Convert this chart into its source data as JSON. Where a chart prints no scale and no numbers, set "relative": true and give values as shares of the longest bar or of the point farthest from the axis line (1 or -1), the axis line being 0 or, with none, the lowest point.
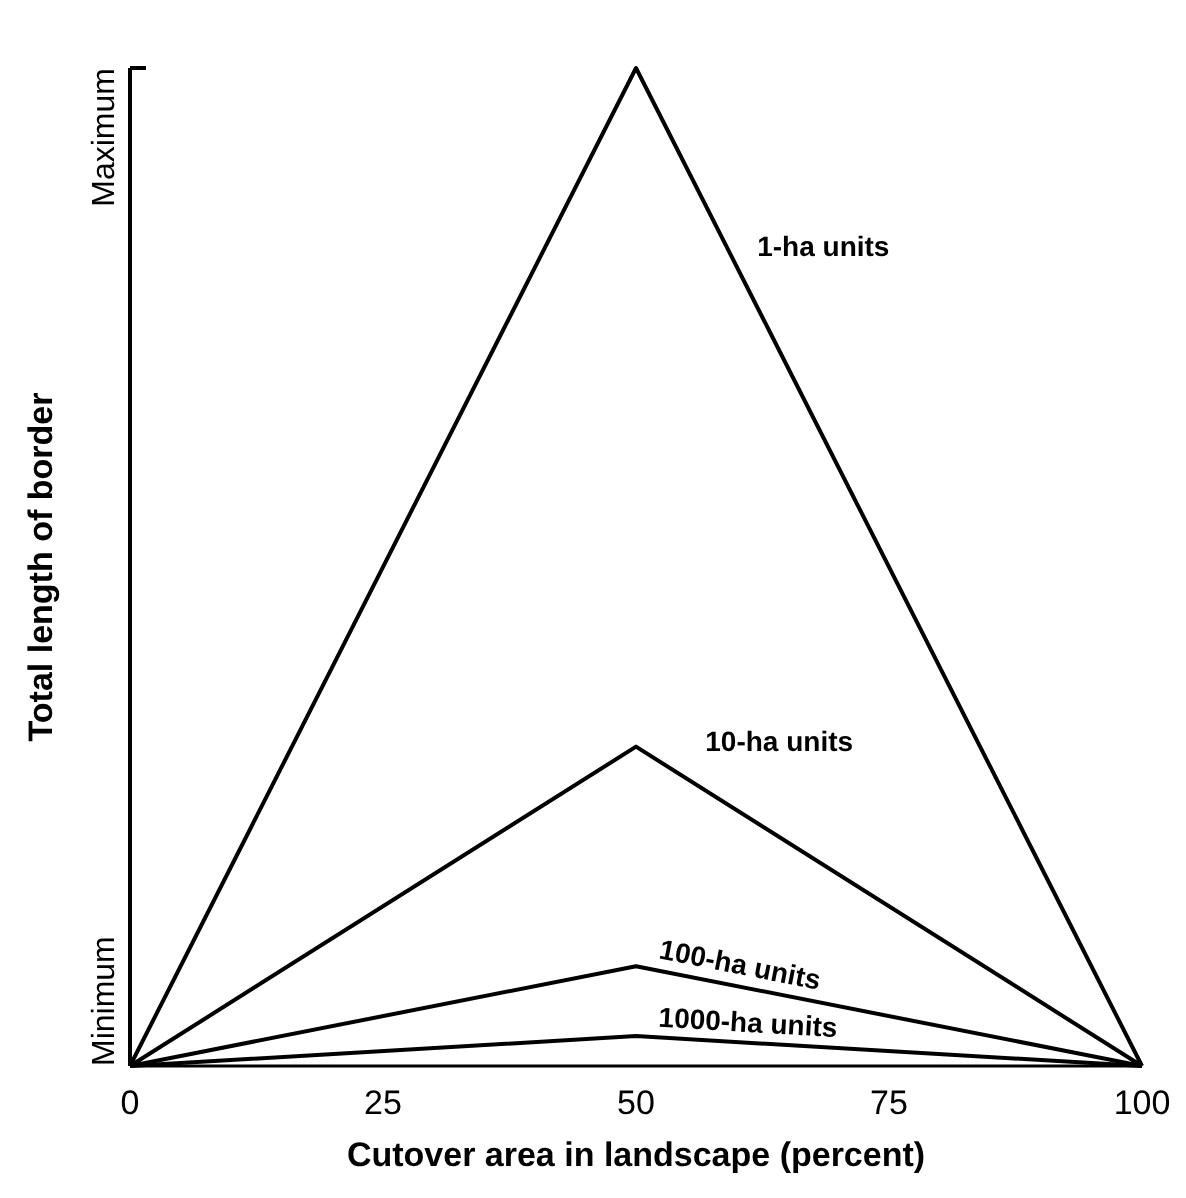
{
  "chart_data": {
    "type": "line",
    "relative": true,
    "xlabel": "Cutover area in landscape (percent)",
    "ylabel": "Total length of border",
    "xlim": [
      0,
      100
    ],
    "xticks": [
      0,
      25,
      50,
      75,
      100
    ],
    "annotations": [
      "Minimum",
      "Maximum"
    ],
    "marker": "none",
    "line_style": "solid",
    "grid": false,
    "x": [
      0,
      50,
      100
    ],
    "series": [
      {
        "name": "1-ha units",
        "color": "#000000",
        "values": [
          0,
          1,
          0
        ]
      },
      {
        "name": "10-ha units",
        "color": "#000000",
        "values": [
          0,
          0.32,
          0
        ]
      },
      {
        "name": "100-ha units",
        "color": "#000000",
        "values": [
          0,
          0.1,
          0
        ]
      },
      {
        "name": "1000-ha units",
        "color": "#000000",
        "values": [
          0,
          0.03,
          0
        ]
      }
    ]
  }
}
